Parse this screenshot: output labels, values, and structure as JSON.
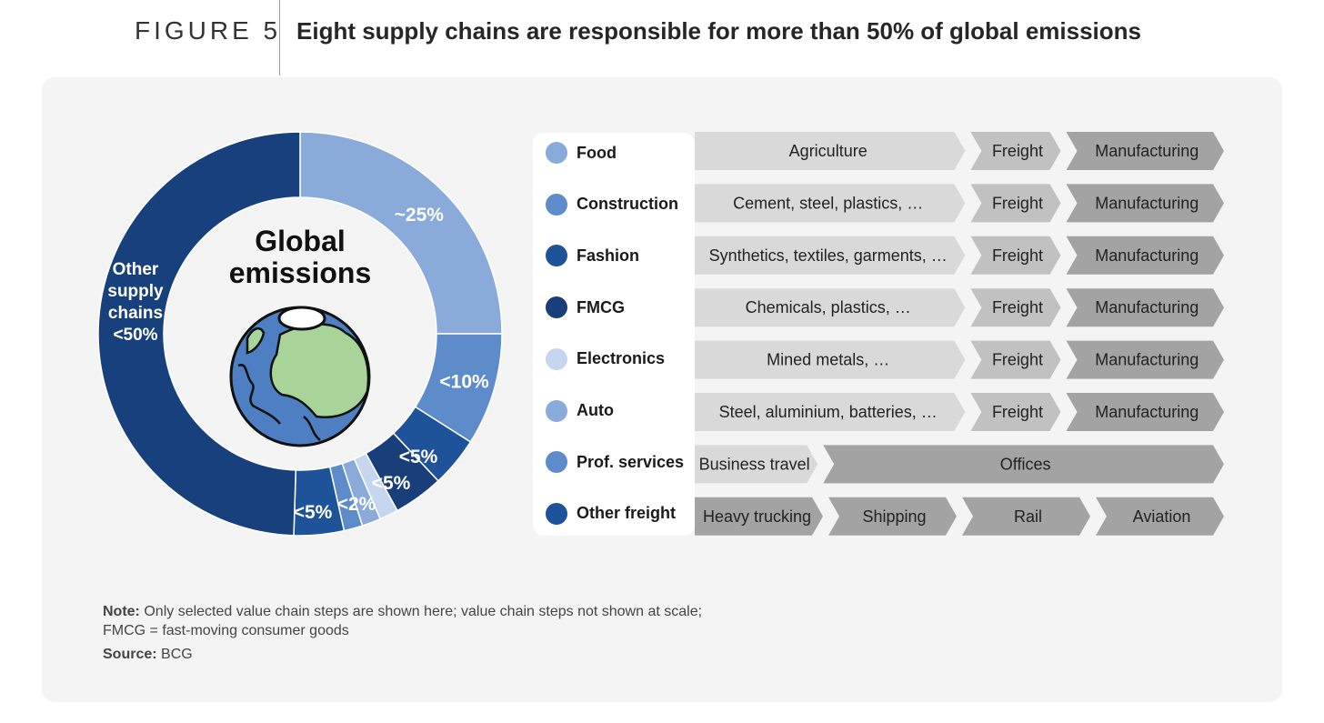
{
  "header": {
    "figure_label": "FIGURE 5",
    "title": "Eight supply chains are responsible for more than 50% of global emissions"
  },
  "chart_data": {
    "type": "pie",
    "title": "Global emissions",
    "center_label_lines": [
      "Global",
      "emissions"
    ],
    "slices": [
      {
        "name": "Food",
        "label": "~25%",
        "value": 25,
        "color": "#8aaad9"
      },
      {
        "name": "Construction",
        "label": "<10%",
        "value": 9,
        "color": "#5e8ccb"
      },
      {
        "name": "Fashion",
        "label": "<5%",
        "value": 4,
        "color": "#1e5299"
      },
      {
        "name": "FMCG",
        "label": "<5%",
        "value": 4,
        "color": "#1a3e7a"
      },
      {
        "name": "Electronics",
        "label": "<2%",
        "value": 1.5,
        "color": "#c5d6ee"
      },
      {
        "name": "Auto",
        "label": "",
        "value": 1.5,
        "color": "#8aaad9"
      },
      {
        "name": "Prof. services",
        "label": "",
        "value": 1.5,
        "color": "#5e8ccb"
      },
      {
        "name": "Other freight",
        "label": "<5%",
        "value": 4,
        "color": "#1e5299"
      },
      {
        "name": "Other supply chains",
        "label_lines": [
          "Other",
          "supply",
          "chains",
          "<50%"
        ],
        "value": 49.5,
        "color": "#17407d"
      }
    ],
    "icon": "globe-icon"
  },
  "legend": [
    {
      "label": "Food",
      "color": "#8aaad9"
    },
    {
      "label": "Construction",
      "color": "#5e8ccb"
    },
    {
      "label": "Fashion",
      "color": "#1e5299"
    },
    {
      "label": "FMCG",
      "color": "#1a3e7a"
    },
    {
      "label": "Electronics",
      "color": "#c5d6ee"
    },
    {
      "label": "Auto",
      "color": "#8aaad9"
    },
    {
      "label": "Prof. services",
      "color": "#5e8ccb"
    },
    {
      "label": "Other freight",
      "color": "#1e5299"
    }
  ],
  "chains": [
    {
      "steps": [
        {
          "label": "Agriculture",
          "weight": 3
        },
        {
          "label": "Freight",
          "weight": 1
        },
        {
          "label": "Manufacturing",
          "weight": 1.75
        }
      ]
    },
    {
      "steps": [
        {
          "label": "Cement, steel, plastics, …",
          "weight": 3
        },
        {
          "label": "Freight",
          "weight": 1
        },
        {
          "label": "Manufacturing",
          "weight": 1.75
        }
      ]
    },
    {
      "steps": [
        {
          "label": "Synthetics, textiles, garments, …",
          "weight": 3
        },
        {
          "label": "Freight",
          "weight": 1
        },
        {
          "label": "Manufacturing",
          "weight": 1.75
        }
      ]
    },
    {
      "steps": [
        {
          "label": "Chemicals, plastics, …",
          "weight": 3
        },
        {
          "label": "Freight",
          "weight": 1
        },
        {
          "label": "Manufacturing",
          "weight": 1.75
        }
      ]
    },
    {
      "steps": [
        {
          "label": "Mined metals, …",
          "weight": 3
        },
        {
          "label": "Freight",
          "weight": 1
        },
        {
          "label": "Manufacturing",
          "weight": 1.75
        }
      ]
    },
    {
      "steps": [
        {
          "label": "Steel, aluminium, batteries, …",
          "weight": 3
        },
        {
          "label": "Freight",
          "weight": 1
        },
        {
          "label": "Manufacturing",
          "weight": 1.75
        }
      ]
    },
    {
      "steps": [
        {
          "label": "Business travel",
          "weight": 1.35
        },
        {
          "label": "Offices",
          "weight": 4.4
        }
      ]
    },
    {
      "steps": [
        {
          "label": "Heavy trucking",
          "weight": 1
        },
        {
          "label": "Shipping",
          "weight": 1
        },
        {
          "label": "Rail",
          "weight": 1
        },
        {
          "label": "Aviation",
          "weight": 1
        }
      ]
    }
  ],
  "colors": {
    "step_light": "#d9d9d9",
    "step_mid": "#c1c1c1",
    "step_dark": "#a3a3a3"
  },
  "note": {
    "prefix": "Note:",
    "text": "Only selected value chain steps are shown here; value chain steps not shown at scale; FMCG = fast-moving consumer goods"
  },
  "source": {
    "prefix": "Source:",
    "text": "BCG"
  }
}
